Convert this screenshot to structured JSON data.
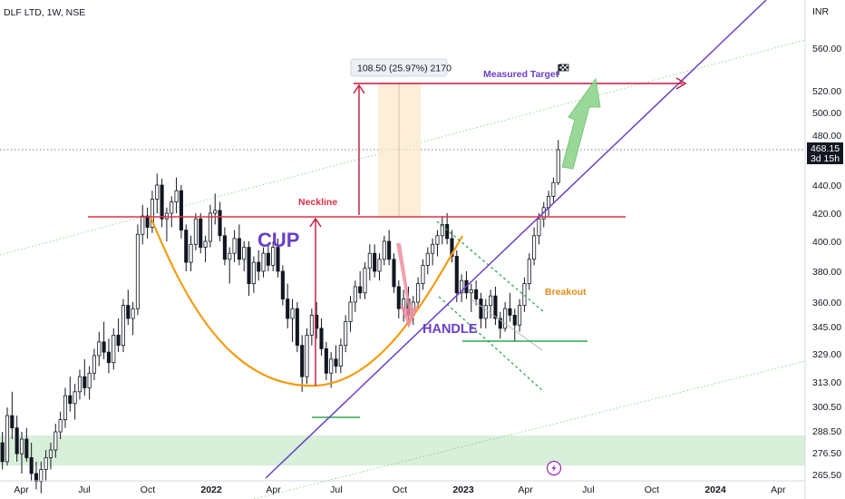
{
  "chart_data": {
    "type": "candlestick",
    "title": "DLF LTD, 1W, NSE",
    "currency": "INR",
    "ylim": [
      262,
      580
    ],
    "y_axis_ticks": [
      265.5,
      276.5,
      288.5,
      300.5,
      313.0,
      329.0,
      345.0,
      360.0,
      380.0,
      400.0,
      420.0,
      440.0,
      460.0,
      480.0,
      500.0,
      520.0,
      560.0
    ],
    "y_axis_tick_labels": [
      "265.50",
      "276.50",
      "288.50",
      "300.50",
      "313.00",
      "329.00",
      "345.00",
      "360.00",
      "380.00",
      "400.00",
      "420.00",
      "440.00",
      "460.00",
      "480.00",
      "500.00",
      "520.00",
      "560.00"
    ],
    "x_axis_range": [
      "2021-03-01",
      "2024-05-10"
    ],
    "x_axis_ticks": [
      {
        "label": "Apr",
        "date": "2021-04-01",
        "bold": false
      },
      {
        "label": "Jul",
        "date": "2021-07-01",
        "bold": false
      },
      {
        "label": "Oct",
        "date": "2021-10-01",
        "bold": false
      },
      {
        "label": "2022",
        "date": "2022-01-01",
        "bold": true
      },
      {
        "label": "Apr",
        "date": "2022-04-01",
        "bold": false
      },
      {
        "label": "Jul",
        "date": "2022-07-01",
        "bold": false
      },
      {
        "label": "Oct",
        "date": "2022-10-01",
        "bold": false
      },
      {
        "label": "2023",
        "date": "2023-01-01",
        "bold": true
      },
      {
        "label": "Apr",
        "date": "2023-04-01",
        "bold": false
      },
      {
        "label": "Jul",
        "date": "2023-07-01",
        "bold": false
      },
      {
        "label": "Oct",
        "date": "2023-10-01",
        "bold": false
      },
      {
        "label": "2024",
        "date": "2024-01-01",
        "bold": true
      },
      {
        "label": "Apr",
        "date": "2024-04-01",
        "bold": false
      }
    ],
    "last_price": "468.15",
    "countdown": "3d 15h",
    "candles": [
      [
        "2021-03-01",
        282,
        288,
        268,
        272
      ],
      [
        "2021-03-08",
        272,
        300,
        270,
        296
      ],
      [
        "2021-03-15",
        296,
        308,
        284,
        290
      ],
      [
        "2021-03-22",
        290,
        296,
        272,
        276
      ],
      [
        "2021-03-29",
        276,
        288,
        266,
        284
      ],
      [
        "2021-04-05",
        284,
        290,
        272,
        274
      ],
      [
        "2021-04-12",
        274,
        282,
        262,
        266
      ],
      [
        "2021-04-19",
        266,
        272,
        258,
        262
      ],
      [
        "2021-04-26",
        262,
        272,
        256,
        268
      ],
      [
        "2021-05-03",
        268,
        278,
        262,
        274
      ],
      [
        "2021-05-10",
        274,
        282,
        268,
        278
      ],
      [
        "2021-05-17",
        278,
        292,
        274,
        288
      ],
      [
        "2021-05-24",
        288,
        298,
        284,
        294
      ],
      [
        "2021-05-31",
        294,
        310,
        290,
        306
      ],
      [
        "2021-06-07",
        306,
        316,
        298,
        302
      ],
      [
        "2021-06-14",
        302,
        312,
        294,
        308
      ],
      [
        "2021-06-21",
        308,
        320,
        304,
        316
      ],
      [
        "2021-06-28",
        316,
        326,
        306,
        310
      ],
      [
        "2021-07-05",
        310,
        322,
        304,
        318
      ],
      [
        "2021-07-12",
        318,
        332,
        314,
        328
      ],
      [
        "2021-07-19",
        328,
        342,
        322,
        336
      ],
      [
        "2021-07-26",
        336,
        348,
        326,
        330
      ],
      [
        "2021-08-02",
        330,
        338,
        318,
        324
      ],
      [
        "2021-08-09",
        324,
        344,
        320,
        340
      ],
      [
        "2021-08-16",
        340,
        350,
        330,
        334
      ],
      [
        "2021-08-23",
        334,
        362,
        330,
        358
      ],
      [
        "2021-08-30",
        358,
        368,
        346,
        350
      ],
      [
        "2021-09-06",
        350,
        360,
        340,
        356
      ],
      [
        "2021-09-13",
        356,
        412,
        352,
        405
      ],
      [
        "2021-09-20",
        405,
        426,
        398,
        418
      ],
      [
        "2021-09-27",
        418,
        424,
        402,
        410
      ],
      [
        "2021-10-04",
        410,
        436,
        406,
        430
      ],
      [
        "2021-10-11",
        430,
        449,
        420,
        440
      ],
      [
        "2021-10-18",
        440,
        445,
        410,
        416
      ],
      [
        "2021-10-25",
        416,
        424,
        400,
        420
      ],
      [
        "2021-11-01",
        420,
        432,
        410,
        428
      ],
      [
        "2021-11-08",
        428,
        446,
        420,
        436
      ],
      [
        "2021-11-15",
        436,
        440,
        402,
        408
      ],
      [
        "2021-11-22",
        408,
        412,
        380,
        386
      ],
      [
        "2021-11-29",
        386,
        404,
        380,
        398
      ],
      [
        "2021-12-06",
        398,
        420,
        394,
        416
      ],
      [
        "2021-12-13",
        416,
        420,
        392,
        396
      ],
      [
        "2021-12-20",
        396,
        404,
        386,
        400
      ],
      [
        "2021-12-27",
        400,
        426,
        396,
        420
      ],
      [
        "2022-01-03",
        420,
        434,
        412,
        422
      ],
      [
        "2022-01-10",
        422,
        428,
        400,
        404
      ],
      [
        "2022-01-17",
        404,
        410,
        384,
        388
      ],
      [
        "2022-01-24",
        388,
        396,
        372,
        392
      ],
      [
        "2022-01-31",
        392,
        408,
        386,
        402
      ],
      [
        "2022-02-07",
        402,
        412,
        384,
        388
      ],
      [
        "2022-02-14",
        388,
        400,
        380,
        396
      ],
      [
        "2022-02-21",
        396,
        400,
        364,
        372
      ],
      [
        "2022-02-28",
        372,
        390,
        366,
        386
      ],
      [
        "2022-03-07",
        386,
        394,
        374,
        380
      ],
      [
        "2022-03-14",
        380,
        396,
        376,
        392
      ],
      [
        "2022-03-21",
        392,
        398,
        380,
        384
      ],
      [
        "2022-03-28",
        384,
        400,
        380,
        396
      ],
      [
        "2022-04-04",
        396,
        402,
        376,
        380
      ],
      [
        "2022-04-11",
        380,
        384,
        358,
        362
      ],
      [
        "2022-04-18",
        362,
        372,
        344,
        350
      ],
      [
        "2022-04-25",
        350,
        362,
        336,
        356
      ],
      [
        "2022-05-02",
        356,
        360,
        330,
        334
      ],
      [
        "2022-05-09",
        334,
        340,
        308,
        316
      ],
      [
        "2022-05-16",
        316,
        344,
        312,
        340
      ],
      [
        "2022-05-23",
        340,
        356,
        334,
        352
      ],
      [
        "2022-05-30",
        352,
        360,
        338,
        344
      ],
      [
        "2022-06-06",
        344,
        350,
        328,
        332
      ],
      [
        "2022-06-13",
        332,
        336,
        314,
        318
      ],
      [
        "2022-06-20",
        318,
        330,
        310,
        326
      ],
      [
        "2022-06-27",
        326,
        334,
        318,
        322
      ],
      [
        "2022-07-04",
        322,
        338,
        318,
        334
      ],
      [
        "2022-07-11",
        334,
        352,
        330,
        348
      ],
      [
        "2022-07-18",
        348,
        364,
        342,
        360
      ],
      [
        "2022-07-25",
        360,
        374,
        354,
        370
      ],
      [
        "2022-08-01",
        370,
        380,
        362,
        366
      ],
      [
        "2022-08-08",
        366,
        386,
        362,
        382
      ],
      [
        "2022-08-15",
        382,
        398,
        374,
        392
      ],
      [
        "2022-08-22",
        392,
        398,
        376,
        380
      ],
      [
        "2022-08-29",
        380,
        392,
        374,
        388
      ],
      [
        "2022-09-05",
        388,
        404,
        384,
        400
      ],
      [
        "2022-09-12",
        400,
        408,
        384,
        388
      ],
      [
        "2022-09-19",
        388,
        392,
        366,
        370
      ],
      [
        "2022-09-26",
        370,
        374,
        350,
        356
      ],
      [
        "2022-10-03",
        356,
        368,
        348,
        362
      ],
      [
        "2022-10-10",
        362,
        370,
        346,
        352
      ],
      [
        "2022-10-17",
        352,
        364,
        346,
        360
      ],
      [
        "2022-10-24",
        360,
        376,
        356,
        372
      ],
      [
        "2022-10-31",
        372,
        388,
        368,
        384
      ],
      [
        "2022-11-07",
        384,
        396,
        378,
        392
      ],
      [
        "2022-11-14",
        392,
        402,
        384,
        398
      ],
      [
        "2022-11-21",
        398,
        408,
        390,
        404
      ],
      [
        "2022-11-28",
        404,
        418,
        398,
        412
      ],
      [
        "2022-12-05",
        412,
        420,
        398,
        402
      ],
      [
        "2022-12-12",
        402,
        408,
        386,
        390
      ],
      [
        "2022-12-19",
        390,
        394,
        360,
        366
      ],
      [
        "2022-12-26",
        366,
        378,
        360,
        374
      ],
      [
        "2023-01-02",
        374,
        380,
        362,
        366
      ],
      [
        "2023-01-09",
        366,
        372,
        354,
        368
      ],
      [
        "2023-01-16",
        368,
        374,
        358,
        362
      ],
      [
        "2023-01-23",
        362,
        366,
        344,
        350
      ],
      [
        "2023-01-30",
        350,
        362,
        344,
        358
      ],
      [
        "2023-02-06",
        358,
        368,
        350,
        364
      ],
      [
        "2023-02-13",
        364,
        370,
        346,
        350
      ],
      [
        "2023-02-20",
        350,
        354,
        338,
        344
      ],
      [
        "2023-02-27",
        344,
        360,
        342,
        356
      ],
      [
        "2023-03-06",
        356,
        366,
        348,
        352
      ],
      [
        "2023-03-13",
        352,
        356,
        336,
        346
      ],
      [
        "2023-03-20",
        346,
        362,
        342,
        358
      ],
      [
        "2023-03-27",
        358,
        376,
        354,
        372
      ],
      [
        "2023-04-03",
        372,
        392,
        368,
        388
      ],
      [
        "2023-04-10",
        388,
        410,
        384,
        404
      ],
      [
        "2023-04-17",
        404,
        420,
        398,
        416
      ],
      [
        "2023-04-24",
        416,
        428,
        410,
        424
      ],
      [
        "2023-05-01",
        424,
        436,
        418,
        432
      ],
      [
        "2023-05-08",
        432,
        446,
        428,
        442
      ],
      [
        "2023-05-15",
        442,
        476,
        440,
        468.15
      ]
    ],
    "annotations": [
      {
        "text": "CUP",
        "color": "#6a3fc7"
      },
      {
        "text": "HANDLE",
        "color": "#6a3fc7"
      },
      {
        "text": "Neckline",
        "color": "#e0304a"
      },
      {
        "text": "Breakout",
        "color": "#e08c1a"
      },
      {
        "text": "Measured Target",
        "color": "#6a3fc7"
      }
    ],
    "measurement_label": "108.50 (25.97%) 2170",
    "neckline_level": 419,
    "target_level": 528,
    "support_zone": [
      270,
      286
    ],
    "colors": {
      "candle_up_body": "#ffffff",
      "candle_down_body": "#131722",
      "candle_border": "#131722",
      "neckline": "#e0304a",
      "target": "#c2183a",
      "trendline": "#6a3fc7",
      "cup": "#f39c12",
      "handle_channel": "#2fa84f",
      "support": "#2fa84f",
      "zone": "#d8efd9",
      "projection_arrow": "#7bcf7b",
      "handle_arrow": "#f08ea0",
      "price_badge": "#131722"
    }
  }
}
